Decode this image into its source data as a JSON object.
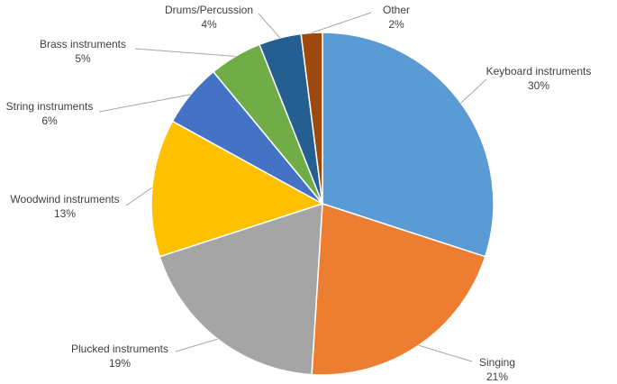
{
  "chart_data": {
    "type": "pie",
    "categories": [
      "Keyboard instruments",
      "Singing",
      "Plucked instruments",
      "Woodwind instruments",
      "String instruments",
      "Brass instruments",
      "Drums/Percussion",
      "Other"
    ],
    "values": [
      30,
      21,
      19,
      13,
      6,
      5,
      4,
      2
    ],
    "value_labels": [
      "30%",
      "21%",
      "19%",
      "13%",
      "6%",
      "5%",
      "4%",
      "2%"
    ],
    "colors": [
      "#5B9BD5",
      "#ED7D31",
      "#A5A5A5",
      "#FFC000",
      "#4472C4",
      "#70AD47",
      "#255E91",
      "#9E480E"
    ]
  }
}
